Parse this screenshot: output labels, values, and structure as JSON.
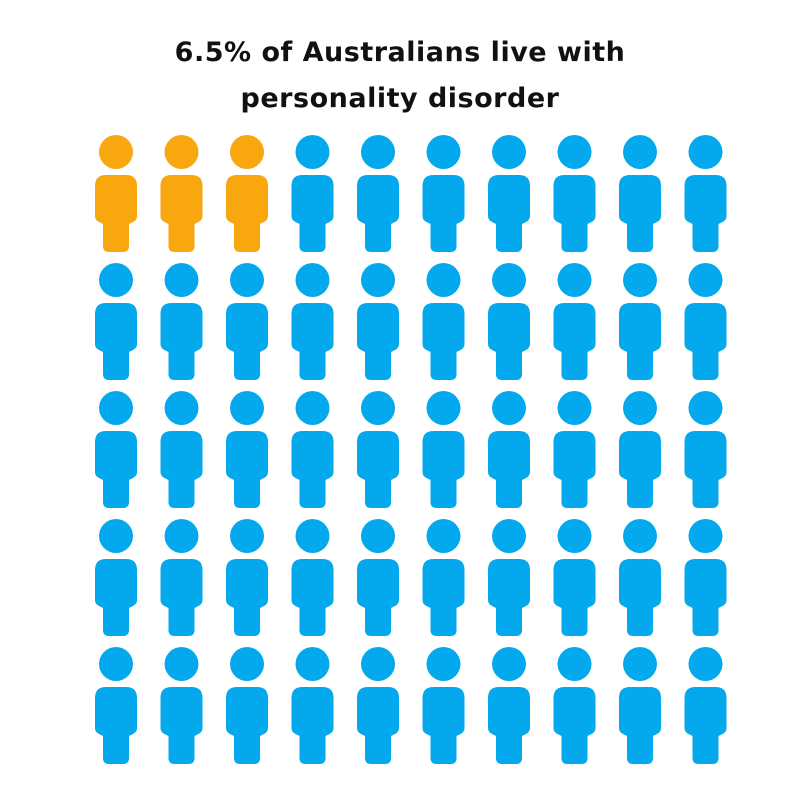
{
  "title_line1": "6.5% of Australians live with",
  "title_line2": "personality disorder",
  "chart_data": {
    "type": "pictogram",
    "icon": "person-icon",
    "rows": 5,
    "columns": 10,
    "total": 50,
    "highlighted": 3,
    "colors": {
      "highlight": "#F9A70F",
      "base": "#03A9EC"
    }
  }
}
